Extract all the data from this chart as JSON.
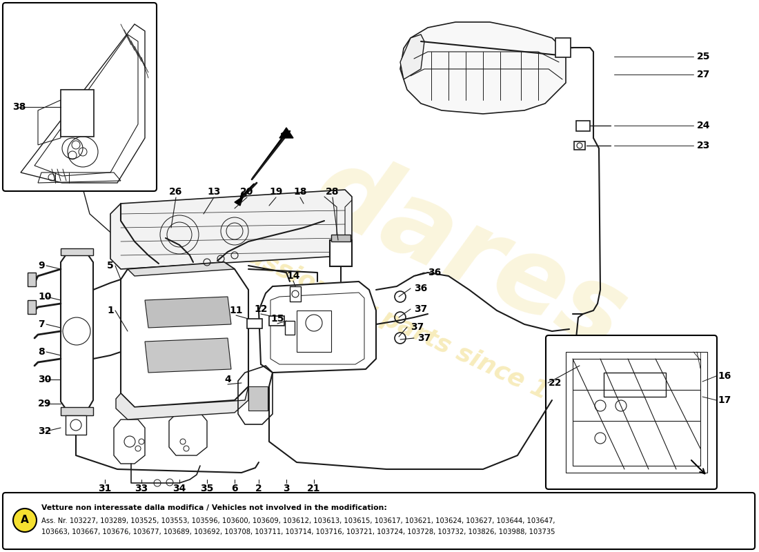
{
  "bg_color": "#ffffff",
  "watermark_color": "#e8c840",
  "note_text_bold": "Vetture non interessate dalla modifica / Vehicles not involved in the modification:",
  "note_text_line1": "Ass. Nr. 103227, 103289, 103525, 103553, 103596, 103600, 103609, 103612, 103613, 103615, 103617, 103621, 103624, 103627, 103644, 103647,",
  "note_text_line2": "103663, 103667, 103676, 103677, 103689, 103692, 103708, 103711, 103714, 103716, 103721, 103724, 103728, 103732, 103826, 103988, 103735",
  "figsize": [
    11.0,
    8.0
  ],
  "dpi": 100
}
